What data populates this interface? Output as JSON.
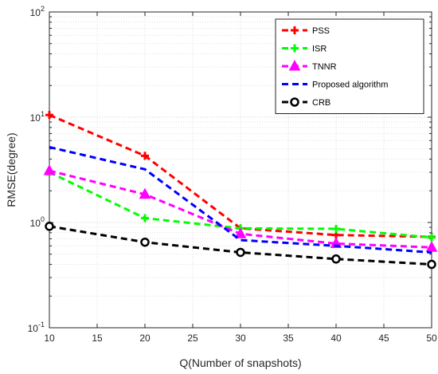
{
  "chart_data": {
    "type": "line",
    "xlabel": "Q(Number of snapshots)",
    "ylabel": "RMSE(degree)",
    "yscale": "log",
    "xlim": [
      10,
      50
    ],
    "ylim": [
      0.1,
      100
    ],
    "x_ticks": [
      10,
      15,
      20,
      25,
      30,
      35,
      40,
      45,
      50
    ],
    "x_tick_labels": [
      "10",
      "15",
      "20",
      "25",
      "30",
      "35",
      "40",
      "45",
      "50"
    ],
    "y_ticks": [
      0.1,
      1,
      10,
      100
    ],
    "y_tick_labels": [
      {
        "base": "10",
        "exp": "-1"
      },
      {
        "base": "10",
        "exp": "0"
      },
      {
        "base": "10",
        "exp": "1"
      },
      {
        "base": "10",
        "exp": "2"
      }
    ],
    "grid": true,
    "legend_position": "top-right",
    "x": [
      10,
      20,
      30,
      40,
      50
    ],
    "series": [
      {
        "name": "PSS",
        "color": "#ff0000",
        "marker": "plus",
        "values": [
          10.5,
          4.3,
          0.88,
          0.76,
          0.73
        ]
      },
      {
        "name": "ISR",
        "color": "#00ff00",
        "marker": "plus",
        "values": [
          3.0,
          1.1,
          0.88,
          0.87,
          0.72
        ]
      },
      {
        "name": "TNNR",
        "color": "#ff00ff",
        "marker": "triangle",
        "values": [
          3.1,
          1.85,
          0.78,
          0.63,
          0.58
        ]
      },
      {
        "name": "Proposed algorithm",
        "color": "#0000ff",
        "marker": "none",
        "values": [
          5.2,
          3.2,
          0.68,
          0.6,
          0.52
        ]
      },
      {
        "name": "CRB",
        "color": "#000000",
        "marker": "circle",
        "values": [
          0.92,
          0.65,
          0.52,
          0.45,
          0.4
        ]
      }
    ]
  }
}
